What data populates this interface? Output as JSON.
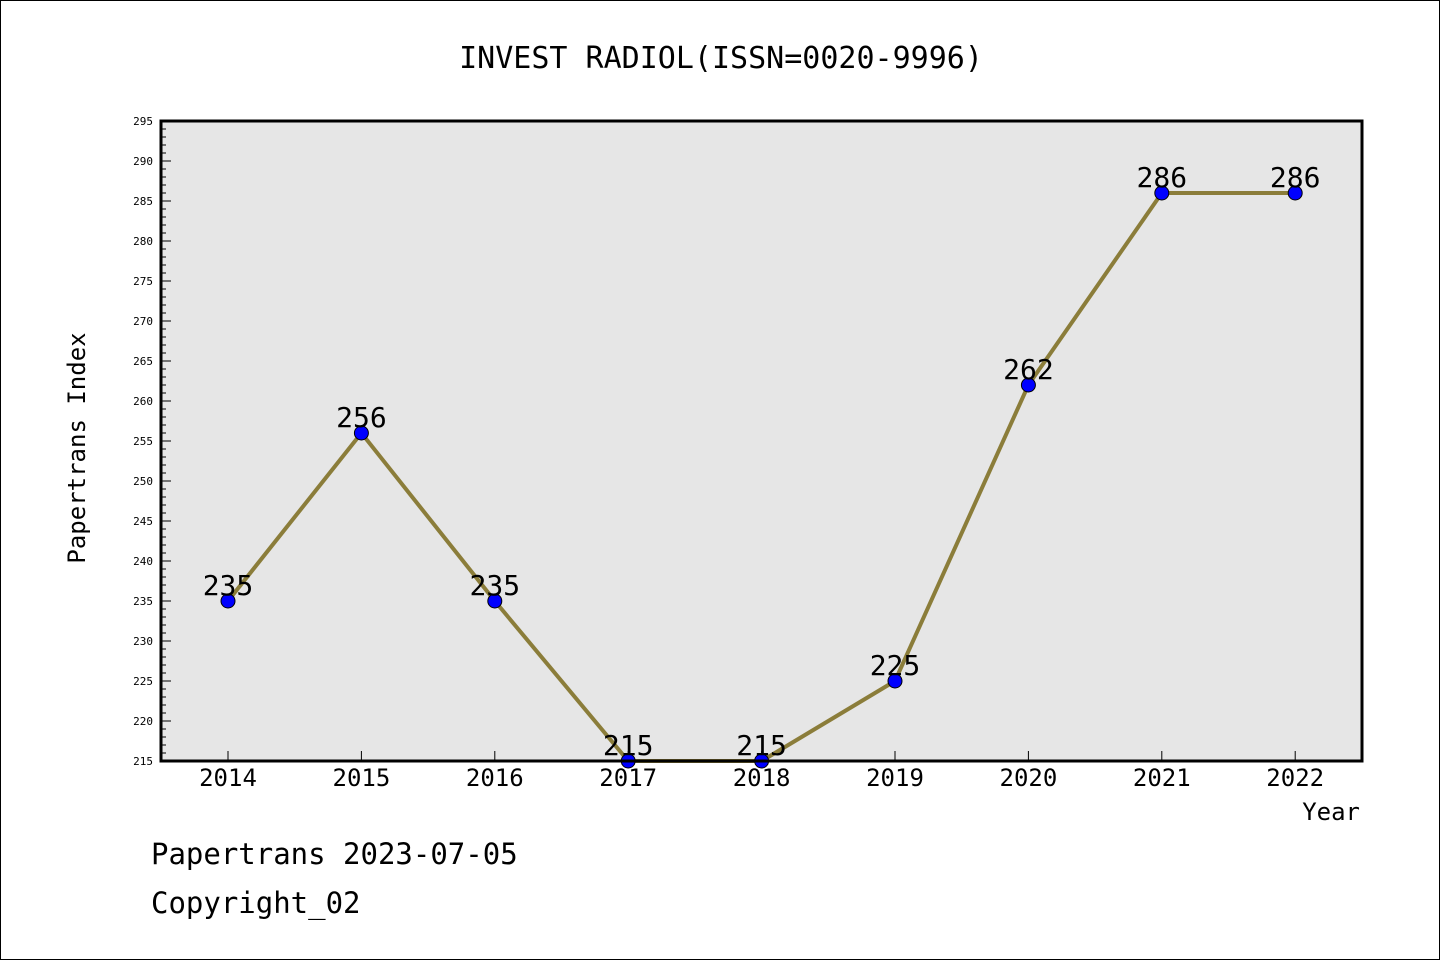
{
  "chart_data": {
    "type": "line",
    "title": "INVEST RADIOL(ISSN=0020-9996)",
    "xlabel": "Year",
    "ylabel": "Papertrans Index",
    "categories": [
      "2014",
      "2015",
      "2016",
      "2017",
      "2018",
      "2019",
      "2020",
      "2021",
      "2022"
    ],
    "series": [
      {
        "values": [
          235,
          256,
          235,
          215,
          215,
          225,
          262,
          286,
          286
        ]
      }
    ],
    "ylim": [
      215,
      295
    ],
    "y_major_step": 5,
    "y_minor_step": 1,
    "grid": false,
    "data_labels": true,
    "colors": {
      "line": "#8B7D3A",
      "marker": "#0000FF",
      "plot_background": "#E6E6E6"
    }
  },
  "footer": {
    "date_text": "Papertrans 2023-07-05",
    "copyright_text": "Copyright_02"
  }
}
